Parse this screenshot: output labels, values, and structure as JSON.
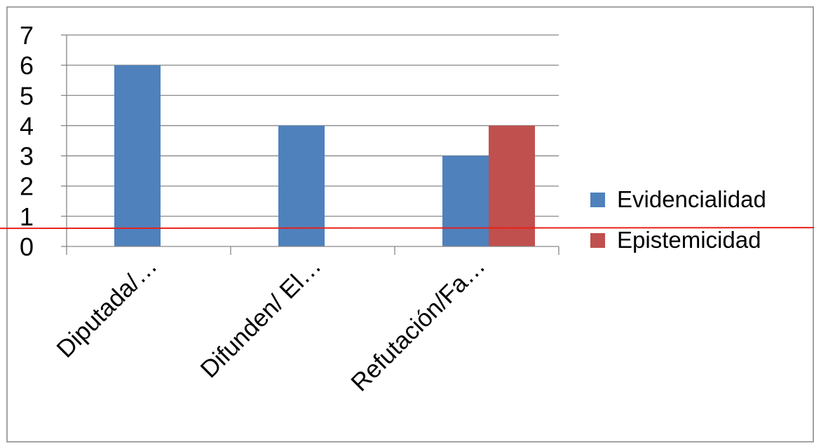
{
  "chart_data": {
    "type": "bar",
    "categories": [
      "Diputada/…",
      "Difunden/ El…",
      "Refutación/Fa…"
    ],
    "series": [
      {
        "name": "Evidencialidad",
        "values": [
          6,
          4,
          3
        ],
        "color": "#4F81BD"
      },
      {
        "name": "Epistemicidad",
        "values": [
          0,
          0,
          4
        ],
        "color": "#C0504D"
      }
    ],
    "ylim": [
      0,
      7
    ],
    "yticks": [
      "0",
      "1",
      "2",
      "3",
      "4",
      "5",
      "6",
      "7"
    ],
    "grid": true,
    "legend": "right",
    "annotation_line": {
      "y": 0.6,
      "color": "#E8201A"
    }
  }
}
